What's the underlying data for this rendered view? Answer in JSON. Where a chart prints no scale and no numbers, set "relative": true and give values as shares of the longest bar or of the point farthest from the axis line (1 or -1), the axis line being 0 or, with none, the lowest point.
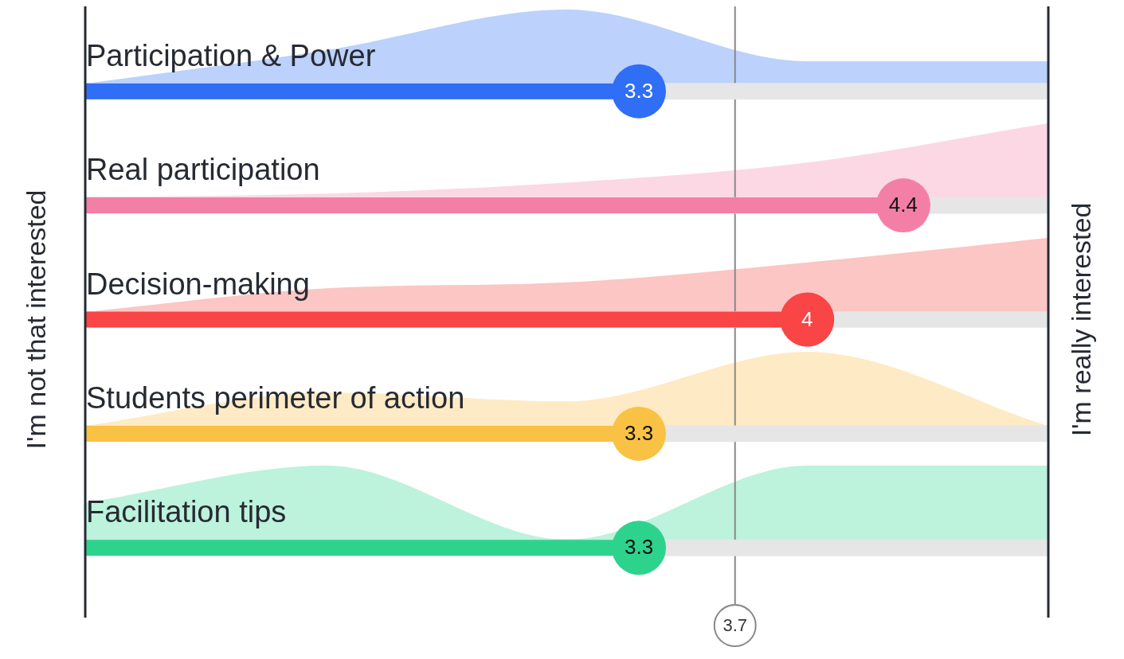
{
  "chart_data": [
    {
      "type": "bar",
      "orientation": "horizontal",
      "categories": [
        "Participation & Power",
        "Real participation",
        "Decision-making",
        "Students perimeter of action",
        "Facilitation tips"
      ],
      "series": [
        {
          "type": "bar",
          "values": [
            5,
            5,
            5,
            5,
            5
          ],
          "color": "#e6e6e6"
        },
        {
          "type": "lollipop",
          "values": [
            3.3,
            4.4,
            4,
            3.3,
            3.3
          ],
          "colors": [
            "#2f6ef5",
            "#f47fa6",
            "#f94545",
            "#f9c244",
            "#2dd38d"
          ],
          "data_labels": true
        }
      ],
      "xlim": [
        1,
        5
      ],
      "ylabel": "I'm not that interested",
      "y2label": "I'm really interested",
      "ref_lines": [
        {
          "axis": "x",
          "value": 3.7,
          "label": "3.7",
          "color": "#888888"
        }
      ]
    },
    {
      "type": "area",
      "relative": true,
      "categories": [
        null,
        null,
        null,
        null,
        null
      ],
      "values": [
        0,
        0.45,
        1,
        0.3,
        0.3
      ],
      "color": "#bcd1fb"
    },
    {
      "type": "area",
      "relative": true,
      "categories": [
        null,
        null,
        null,
        null,
        null
      ],
      "values": [
        0,
        0.05,
        0.2,
        0.47,
        1
      ],
      "color": "#fbd8e4"
    },
    {
      "type": "area",
      "relative": true,
      "categories": [
        null,
        null,
        null,
        null,
        null
      ],
      "values": [
        0,
        0.32,
        0.4,
        0.67,
        1
      ],
      "color": "#fbc6c4"
    },
    {
      "type": "area",
      "relative": true,
      "categories": [
        null,
        null,
        null,
        null,
        null
      ],
      "values": [
        0,
        0.45,
        0.33,
        1,
        0
      ],
      "color": "#feeac4"
    },
    {
      "type": "area",
      "relative": true,
      "categories": [
        null,
        null,
        null,
        null,
        null
      ],
      "values": [
        0.5,
        1,
        0,
        1,
        1
      ],
      "color": "#bdf2dc"
    }
  ]
}
